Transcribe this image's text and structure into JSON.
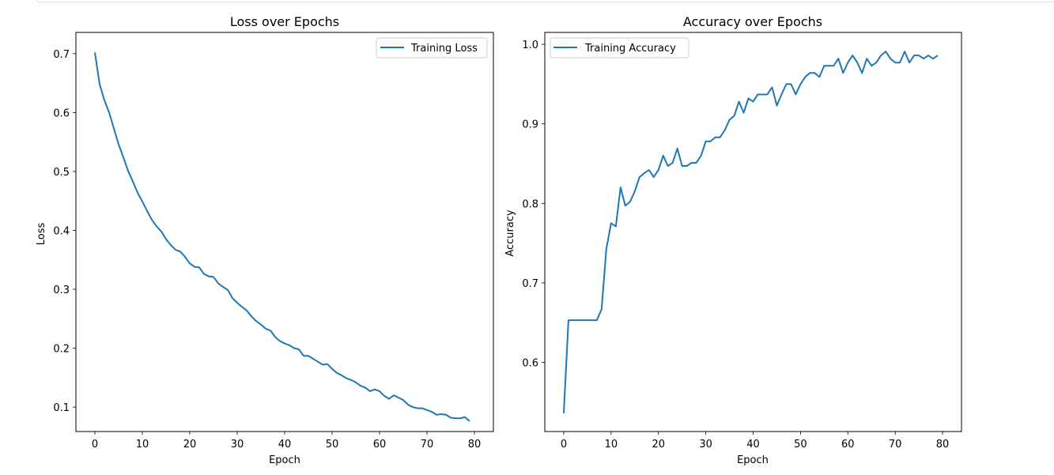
{
  "chart_data": [
    {
      "type": "line",
      "title": "Loss over Epochs",
      "xlabel": "Epoch",
      "ylabel": "Loss",
      "xlim": [
        -4,
        84
      ],
      "ylim": [
        0.0585,
        0.736
      ],
      "xticks": [
        0,
        10,
        20,
        30,
        40,
        50,
        60,
        70,
        80
      ],
      "yticks": [
        0.1,
        0.2,
        0.3,
        0.4,
        0.5,
        0.6,
        0.7
      ],
      "ytick_labels": [
        "0.1",
        "0.2",
        "0.3",
        "0.4",
        "0.5",
        "0.6",
        "0.7"
      ],
      "grid": false,
      "legend_position": "top-right",
      "series": [
        {
          "name": "Training Loss",
          "color": "#1f77b4",
          "x": [
            0,
            1,
            2,
            3,
            4,
            5,
            6,
            7,
            8,
            9,
            10,
            11,
            12,
            13,
            14,
            15,
            16,
            17,
            18,
            19,
            20,
            21,
            22,
            23,
            24,
            25,
            26,
            27,
            28,
            29,
            30,
            31,
            32,
            33,
            34,
            35,
            36,
            37,
            38,
            39,
            40,
            41,
            42,
            43,
            44,
            45,
            46,
            47,
            48,
            49,
            50,
            51,
            52,
            53,
            54,
            55,
            56,
            57,
            58,
            59,
            60,
            61,
            62,
            63,
            64,
            65,
            66,
            67,
            68,
            69,
            70,
            71,
            72,
            73,
            74,
            75,
            76,
            77,
            78,
            79
          ],
          "values": [
            0.702,
            0.648,
            0.621,
            0.6,
            0.573,
            0.546,
            0.524,
            0.501,
            0.483,
            0.464,
            0.449,
            0.433,
            0.418,
            0.407,
            0.398,
            0.385,
            0.375,
            0.367,
            0.364,
            0.355,
            0.344,
            0.338,
            0.337,
            0.326,
            0.322,
            0.321,
            0.31,
            0.304,
            0.299,
            0.285,
            0.277,
            0.27,
            0.264,
            0.254,
            0.246,
            0.24,
            0.233,
            0.23,
            0.219,
            0.212,
            0.208,
            0.205,
            0.2,
            0.198,
            0.187,
            0.187,
            0.182,
            0.177,
            0.172,
            0.173,
            0.165,
            0.158,
            0.154,
            0.149,
            0.146,
            0.142,
            0.136,
            0.133,
            0.127,
            0.13,
            0.127,
            0.119,
            0.114,
            0.12,
            0.116,
            0.112,
            0.104,
            0.1,
            0.098,
            0.098,
            0.095,
            0.092,
            0.087,
            0.088,
            0.087,
            0.082,
            0.081,
            0.081,
            0.083,
            0.076
          ]
        }
      ]
    },
    {
      "type": "line",
      "title": "Accuracy over Epochs",
      "xlabel": "Epoch",
      "ylabel": "Accuracy",
      "xlim": [
        -4,
        84
      ],
      "ylim": [
        0.513,
        1.015
      ],
      "xticks": [
        0,
        10,
        20,
        30,
        40,
        50,
        60,
        70,
        80
      ],
      "yticks": [
        0.6,
        0.7,
        0.8,
        0.9,
        1.0
      ],
      "ytick_labels": [
        "0.6",
        "0.7",
        "0.8",
        "0.9",
        "1.0"
      ],
      "grid": false,
      "legend_position": "top-left",
      "series": [
        {
          "name": "Training Accuracy",
          "color": "#1f77b4",
          "x": [
            0,
            1,
            2,
            3,
            4,
            5,
            6,
            7,
            8,
            9,
            10,
            11,
            12,
            13,
            14,
            15,
            16,
            17,
            18,
            19,
            20,
            21,
            22,
            23,
            24,
            25,
            26,
            27,
            28,
            29,
            30,
            31,
            32,
            33,
            34,
            35,
            36,
            37,
            38,
            39,
            40,
            41,
            42,
            43,
            44,
            45,
            46,
            47,
            48,
            49,
            50,
            51,
            52,
            53,
            54,
            55,
            56,
            57,
            58,
            59,
            60,
            61,
            62,
            63,
            64,
            65,
            66,
            67,
            68,
            69,
            70,
            71,
            72,
            73,
            74,
            75,
            76,
            77,
            78,
            79
          ],
          "values": [
            0.536,
            0.653,
            0.653,
            0.653,
            0.653,
            0.653,
            0.653,
            0.653,
            0.667,
            0.743,
            0.775,
            0.771,
            0.82,
            0.797,
            0.802,
            0.815,
            0.833,
            0.838,
            0.842,
            0.833,
            0.842,
            0.86,
            0.847,
            0.851,
            0.869,
            0.847,
            0.847,
            0.851,
            0.851,
            0.86,
            0.878,
            0.878,
            0.883,
            0.883,
            0.892,
            0.905,
            0.91,
            0.928,
            0.914,
            0.932,
            0.928,
            0.937,
            0.937,
            0.937,
            0.946,
            0.923,
            0.937,
            0.95,
            0.95,
            0.937,
            0.95,
            0.959,
            0.964,
            0.964,
            0.959,
            0.973,
            0.973,
            0.973,
            0.982,
            0.964,
            0.977,
            0.986,
            0.977,
            0.964,
            0.982,
            0.973,
            0.977,
            0.986,
            0.991,
            0.982,
            0.977,
            0.977,
            0.991,
            0.977,
            0.986,
            0.986,
            0.982,
            0.986,
            0.982,
            0.986
          ]
        }
      ]
    }
  ]
}
